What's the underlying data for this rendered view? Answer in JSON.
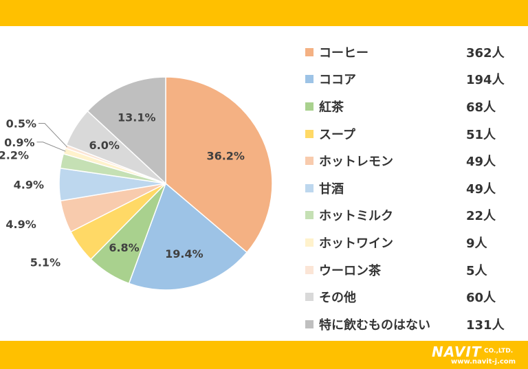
{
  "chart_data": {
    "type": "pie",
    "slices": [
      {
        "label": "コーヒー",
        "count": "362人",
        "percent": "36.2%",
        "value": 36.2,
        "color": "#F4B183"
      },
      {
        "label": "ココア",
        "count": "194人",
        "percent": "19.4%",
        "value": 19.4,
        "color": "#9DC3E6"
      },
      {
        "label": "紅茶",
        "count": "68人",
        "percent": "6.8%",
        "value": 6.8,
        "color": "#A9D18E"
      },
      {
        "label": "スープ",
        "count": "51人",
        "percent": "5.1%",
        "value": 5.1,
        "color": "#FFD966"
      },
      {
        "label": "ホットレモン",
        "count": "49人",
        "percent": "4.9%",
        "value": 4.9,
        "color": "#F8CBAD"
      },
      {
        "label": "甘酒",
        "count": "49人",
        "percent": "4.9%",
        "value": 4.9,
        "color": "#BDD7EE"
      },
      {
        "label": "ホットミルク",
        "count": "22人",
        "percent": "2.2%",
        "value": 2.2,
        "color": "#C5E0B4"
      },
      {
        "label": "ホットワイン",
        "count": "9人",
        "percent": "0.9%",
        "value": 0.9,
        "color": "#FFF2CC"
      },
      {
        "label": "ウーロン茶",
        "count": "5人",
        "percent": "0.5%",
        "value": 0.5,
        "color": "#FBE5D6"
      },
      {
        "label": "その他",
        "count": "60人",
        "percent": "6.0%",
        "value": 6.0,
        "color": "#D9D9D9"
      },
      {
        "label": "特に飲むものはない",
        "count": "131人",
        "percent": "13.1%",
        "value": 13.1,
        "color": "#BFBFBF"
      }
    ],
    "legend_position": "right"
  },
  "logo": {
    "brand": "NAVIT",
    "suffix": "CO.,LTD.",
    "url": "www.navit-j.com"
  },
  "colors": {
    "banner": "#FFC000"
  }
}
